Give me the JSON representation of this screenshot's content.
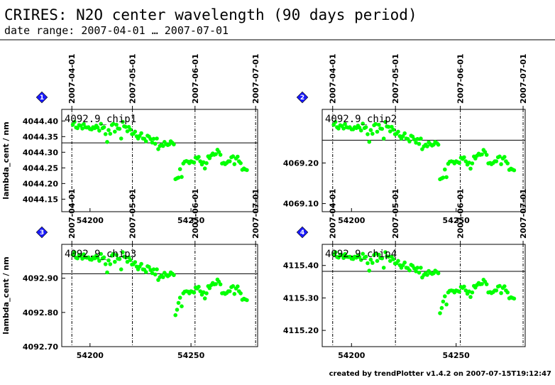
{
  "header": {
    "title": "CRIRES: N2O center wavelength (90 days period)",
    "subtitle": "date range: 2007-04-01 … 2007-07-01"
  },
  "footer": {
    "text": "created by trendPlotter v1.4.2 on 2007-07-15T19:12:47"
  },
  "colors": {
    "points": "#00ff00",
    "badge": "#1a1aff",
    "reference_line": "#000000"
  },
  "chart_data": [
    {
      "type": "scatter",
      "panel_label": "4092.9_chip1",
      "badge": "1",
      "ylabel": "lambda_cent / nm",
      "xlim": [
        54186,
        54283
      ],
      "ylim": [
        44.11,
        44.437
      ],
      "y_prefix": "40",
      "x_ticks": [
        54200,
        54250
      ],
      "y_ticks": [
        "4044.15",
        "4044.20",
        "4044.25",
        "4044.30",
        "4044.35",
        "4044.40"
      ],
      "date_ticks": [
        {
          "label": "2007-04-01",
          "x": 54191
        },
        {
          "label": "2007-05-01",
          "x": 54221
        },
        {
          "label": "2007-06-01",
          "x": 54252
        },
        {
          "label": "2007-07-01",
          "x": 54282
        }
      ],
      "reference_line": 44.33,
      "x": [
        54191.5,
        54192.3,
        54193.1,
        54193.8,
        54194.6,
        54195.4,
        54196.2,
        54196.9,
        54197.7,
        54198.5,
        54199.2,
        54200.0,
        54200.8,
        54201.5,
        54202.3,
        54203.1,
        54203.8,
        54204.6,
        54205.4,
        54206.2,
        54206.9,
        54207.7,
        54208.5,
        54209.2,
        54210.0,
        54210.8,
        54211.5,
        54212.3,
        54213.1,
        54213.8,
        54214.6,
        54215.4,
        54216.2,
        54216.9,
        54217.7,
        54218.5,
        54219.2,
        54220.0,
        54220.8,
        54221.5,
        54222.3,
        54223.1,
        54223.8,
        54224.6,
        54225.4,
        54226.2,
        54226.9,
        54227.7,
        54228.5,
        54229.2,
        54230.0,
        54230.8,
        54231.5,
        54232.3,
        54233.1,
        54233.8,
        54234.6,
        54235.4,
        54236.2,
        54236.9,
        54237.7,
        54238.5,
        54239.2,
        54240.0,
        54240.8,
        54241.5,
        54242.3,
        54243.1,
        54243.8,
        54244.6,
        54245.4,
        54246.2,
        54246.9,
        54247.7,
        54248.5,
        54249.2,
        54250.0,
        54250.8,
        54251.5,
        54252.3,
        54253.1,
        54253.8,
        54254.6,
        54255.4,
        54256.2,
        54256.9,
        54257.7,
        54258.5,
        54259.2,
        54260.0,
        54260.8,
        54261.5,
        54262.3,
        54263.1,
        54263.8,
        54264.6,
        54265.4,
        54266.2,
        54266.9,
        54267.7,
        54268.5,
        54269.2,
        54270.0,
        54270.8,
        54271.5,
        54272.3,
        54273.1,
        54273.8,
        54274.6,
        54275.4,
        54276.2,
        54276.9,
        54277.7
      ],
      "y": [
        44.388,
        44.397,
        44.379,
        44.377,
        44.387,
        44.385,
        44.376,
        44.39,
        44.38,
        44.379,
        44.38,
        44.374,
        44.373,
        44.38,
        44.377,
        44.385,
        44.379,
        44.369,
        44.391,
        44.377,
        44.38,
        44.358,
        44.333,
        44.371,
        44.359,
        44.387,
        44.391,
        44.366,
        44.388,
        44.376,
        44.375,
        44.344,
        44.397,
        44.383,
        44.381,
        44.367,
        44.381,
        44.372,
        44.358,
        44.359,
        44.366,
        44.351,
        44.344,
        44.352,
        44.361,
        44.344,
        44.343,
        44.335,
        44.353,
        44.35,
        44.342,
        44.331,
        44.343,
        44.327,
        44.344,
        44.31,
        44.32,
        44.324,
        44.32,
        44.333,
        44.326,
        44.323,
        44.325,
        44.335,
        44.33,
        44.325,
        44.214,
        44.217,
        44.219,
        44.246,
        44.221,
        44.264,
        44.27,
        44.272,
        44.27,
        44.265,
        44.271,
        44.269,
        44.267,
        44.283,
        44.28,
        44.285,
        44.271,
        44.261,
        44.268,
        44.248,
        44.265,
        44.287,
        44.281,
        44.29,
        44.296,
        44.292,
        44.294,
        44.308,
        44.301,
        44.292,
        44.264,
        44.266,
        44.262,
        44.266,
        44.271,
        44.271,
        44.284,
        44.287,
        44.262,
        44.28,
        44.286,
        44.271,
        44.265,
        44.244,
        44.248,
        44.245,
        44.243
      ]
    },
    {
      "type": "scatter",
      "panel_label": "4092.9_chip2",
      "badge": "2",
      "ylabel": "",
      "xlim": [
        54186,
        54283
      ],
      "ylim": [
        69.08,
        69.332
      ],
      "y_prefix": "40",
      "x_ticks": [
        54200,
        54250
      ],
      "y_ticks": [
        "4069.10",
        "4069.20"
      ],
      "date_ticks": [
        {
          "label": "2007-04-01",
          "x": 54191
        },
        {
          "label": "2007-05-01",
          "x": 54221
        },
        {
          "label": "2007-06-01",
          "x": 54252
        },
        {
          "label": "2007-07-01",
          "x": 54282
        }
      ],
      "reference_line": 69.256,
      "x": [
        54191.5,
        54192.3,
        54193.1,
        54193.8,
        54194.6,
        54195.4,
        54196.2,
        54196.9,
        54197.7,
        54198.5,
        54199.2,
        54200.0,
        54200.8,
        54201.5,
        54202.3,
        54203.1,
        54203.8,
        54204.6,
        54205.4,
        54206.2,
        54206.9,
        54207.7,
        54208.5,
        54209.2,
        54210.0,
        54210.8,
        54211.5,
        54212.3,
        54213.1,
        54213.8,
        54214.6,
        54215.4,
        54216.2,
        54216.9,
        54217.7,
        54218.5,
        54219.2,
        54220.0,
        54220.8,
        54221.5,
        54222.3,
        54223.1,
        54223.8,
        54224.6,
        54225.4,
        54226.2,
        54226.9,
        54227.7,
        54228.5,
        54229.2,
        54230.0,
        54230.8,
        54231.5,
        54232.3,
        54233.1,
        54233.8,
        54234.6,
        54235.4,
        54236.2,
        54236.9,
        54237.7,
        54238.5,
        54239.2,
        54240.0,
        54240.8,
        54241.5,
        54242.3,
        54243.1,
        54243.8,
        54244.6,
        54245.4,
        54246.2,
        54246.9,
        54247.7,
        54248.5,
        54249.2,
        54250.0,
        54250.8,
        54251.5,
        54252.3,
        54253.1,
        54253.8,
        54254.6,
        54255.4,
        54256.2,
        54256.9,
        54257.7,
        54258.5,
        54259.2,
        54260.0,
        54260.8,
        54261.5,
        54262.3,
        54263.1,
        54263.8,
        54264.6,
        54265.4,
        54266.2,
        54266.9,
        54267.7,
        54268.5,
        54269.2,
        54270.0,
        54270.8,
        54271.5,
        54272.3,
        54273.1,
        54273.8,
        54274.6,
        54275.4,
        54276.2,
        54276.9,
        54277.7
      ],
      "y": [
        69.294,
        69.301,
        69.288,
        69.285,
        69.293,
        69.291,
        69.285,
        69.296,
        69.288,
        69.287,
        69.288,
        69.283,
        69.283,
        69.288,
        69.286,
        69.292,
        69.287,
        69.28,
        69.297,
        69.286,
        69.288,
        69.271,
        69.252,
        69.281,
        69.272,
        69.293,
        69.296,
        69.277,
        69.294,
        69.285,
        69.284,
        69.26,
        69.301,
        69.29,
        69.289,
        69.278,
        69.289,
        69.282,
        69.271,
        69.272,
        69.277,
        69.266,
        69.26,
        69.266,
        69.273,
        69.26,
        69.259,
        69.253,
        69.267,
        69.265,
        69.258,
        69.25,
        69.259,
        69.247,
        69.26,
        69.234,
        69.241,
        69.245,
        69.241,
        69.251,
        69.246,
        69.243,
        69.245,
        69.252,
        69.249,
        69.245,
        69.16,
        69.162,
        69.164,
        69.184,
        69.165,
        69.198,
        69.203,
        69.204,
        69.203,
        69.199,
        69.204,
        69.202,
        69.2,
        69.213,
        69.21,
        69.214,
        69.204,
        69.196,
        69.201,
        69.186,
        69.199,
        69.216,
        69.211,
        69.218,
        69.223,
        69.22,
        69.221,
        69.232,
        69.227,
        69.22,
        69.199,
        69.2,
        69.197,
        69.2,
        69.204,
        69.204,
        69.214,
        69.216,
        69.197,
        69.211,
        69.215,
        69.204,
        69.199,
        69.183,
        69.186,
        69.184,
        69.182
      ]
    },
    {
      "type": "scatter",
      "panel_label": "4092.9_chip3",
      "badge": "3",
      "ylabel": "lambda_cent / nm",
      "xlim": [
        54186,
        54283
      ],
      "ylim": [
        92.7,
        92.999
      ],
      "y_prefix": "40",
      "x_ticks": [
        54200,
        54250
      ],
      "y_ticks": [
        "4092.70",
        "4092.80",
        "4092.90"
      ],
      "date_ticks": [
        {
          "label": "2007-04-01",
          "x": 54191
        },
        {
          "label": "2007-05-01",
          "x": 54221
        },
        {
          "label": "2007-06-01",
          "x": 54252
        },
        {
          "label": "2007-07-01",
          "x": 54282
        }
      ],
      "reference_line": 92.913,
      "x": [
        54191.5,
        54192.3,
        54193.1,
        54193.8,
        54194.6,
        54195.4,
        54196.2,
        54196.9,
        54197.7,
        54198.5,
        54199.2,
        54200.0,
        54200.8,
        54201.5,
        54202.3,
        54203.1,
        54203.8,
        54204.6,
        54205.4,
        54206.2,
        54206.9,
        54207.7,
        54208.5,
        54209.2,
        54210.0,
        54210.8,
        54211.5,
        54212.3,
        54213.1,
        54213.8,
        54214.6,
        54215.4,
        54216.2,
        54216.9,
        54217.7,
        54218.5,
        54219.2,
        54220.0,
        54220.8,
        54221.5,
        54222.3,
        54223.1,
        54223.8,
        54224.6,
        54225.4,
        54226.2,
        54226.9,
        54227.7,
        54228.5,
        54229.2,
        54230.0,
        54230.8,
        54231.5,
        54232.3,
        54233.1,
        54233.8,
        54234.6,
        54235.4,
        54236.2,
        54236.9,
        54237.7,
        54238.5,
        54239.2,
        54240.0,
        54240.8,
        54241.5,
        54242.3,
        54243.1,
        54243.8,
        54244.6,
        54245.4,
        54246.2,
        54246.9,
        54247.7,
        54248.5,
        54249.2,
        54250.0,
        54250.8,
        54251.5,
        54252.3,
        54253.1,
        54253.8,
        54254.6,
        54255.4,
        54256.2,
        54256.9,
        54257.7,
        54258.5,
        54259.2,
        54260.0,
        54260.8,
        54261.5,
        54262.3,
        54263.1,
        54263.8,
        54264.6,
        54265.4,
        54266.2,
        54266.9,
        54267.7,
        54268.5,
        54269.2,
        54270.0,
        54270.8,
        54271.5,
        54272.3,
        54273.1,
        54273.8,
        54274.6,
        54275.4,
        54276.2,
        54276.9,
        54277.7
      ],
      "y": [
        92.968,
        92.976,
        92.96,
        92.958,
        92.968,
        92.965,
        92.957,
        92.97,
        92.961,
        92.96,
        92.961,
        92.955,
        92.954,
        92.961,
        92.958,
        92.966,
        92.96,
        92.951,
        92.971,
        92.958,
        92.961,
        92.941,
        92.917,
        92.952,
        92.941,
        92.966,
        92.971,
        92.948,
        92.968,
        92.957,
        92.956,
        92.926,
        92.976,
        92.963,
        92.961,
        92.948,
        92.961,
        92.953,
        92.94,
        92.941,
        92.947,
        92.934,
        92.926,
        92.934,
        92.942,
        92.926,
        92.925,
        92.918,
        92.935,
        92.933,
        92.924,
        92.915,
        92.926,
        92.911,
        92.926,
        92.895,
        92.903,
        92.908,
        92.903,
        92.916,
        92.91,
        92.906,
        92.909,
        92.917,
        92.913,
        92.909,
        92.792,
        92.808,
        92.828,
        92.843,
        92.818,
        92.856,
        92.861,
        92.862,
        92.861,
        92.856,
        92.862,
        92.86,
        92.858,
        92.873,
        92.87,
        92.875,
        92.862,
        92.852,
        92.859,
        92.841,
        92.856,
        92.877,
        92.871,
        92.88,
        92.886,
        92.882,
        92.883,
        92.896,
        92.89,
        92.882,
        92.856,
        92.857,
        92.854,
        92.857,
        92.862,
        92.862,
        92.874,
        92.877,
        92.854,
        92.87,
        92.876,
        92.862,
        92.856,
        92.837,
        92.84,
        92.838,
        92.836
      ]
    },
    {
      "type": "scatter",
      "panel_label": "4092.9_chip4",
      "badge": "4",
      "ylabel": "",
      "xlim": [
        54186,
        54283
      ],
      "ylim": [
        15.15,
        15.465
      ],
      "y_prefix": "41",
      "x_ticks": [
        54200,
        54250
      ],
      "y_ticks": [
        "4115.20",
        "4115.30",
        "4115.40"
      ],
      "date_ticks": [
        {
          "label": "2007-04-01",
          "x": 54191
        },
        {
          "label": "2007-05-01",
          "x": 54221
        },
        {
          "label": "2007-06-01",
          "x": 54252
        },
        {
          "label": "2007-07-01",
          "x": 54282
        }
      ],
      "reference_line": 15.382,
      "x": [
        54191.5,
        54192.3,
        54193.1,
        54193.8,
        54194.6,
        54195.4,
        54196.2,
        54196.9,
        54197.7,
        54198.5,
        54199.2,
        54200.0,
        54200.8,
        54201.5,
        54202.3,
        54203.1,
        54203.8,
        54204.6,
        54205.4,
        54206.2,
        54206.9,
        54207.7,
        54208.5,
        54209.2,
        54210.0,
        54210.8,
        54211.5,
        54212.3,
        54213.1,
        54213.8,
        54214.6,
        54215.4,
        54216.2,
        54216.9,
        54217.7,
        54218.5,
        54219.2,
        54220.0,
        54220.8,
        54221.5,
        54222.3,
        54223.1,
        54223.8,
        54224.6,
        54225.4,
        54226.2,
        54226.9,
        54227.7,
        54228.5,
        54229.2,
        54230.0,
        54230.8,
        54231.5,
        54232.3,
        54233.1,
        54233.8,
        54234.6,
        54235.4,
        54236.2,
        54236.9,
        54237.7,
        54238.5,
        54239.2,
        54240.0,
        54240.8,
        54241.5,
        54242.3,
        54243.1,
        54243.8,
        54244.6,
        54245.4,
        54246.2,
        54246.9,
        54247.7,
        54248.5,
        54249.2,
        54250.0,
        54250.8,
        54251.5,
        54252.3,
        54253.1,
        54253.8,
        54254.6,
        54255.4,
        54256.2,
        54256.9,
        54257.7,
        54258.5,
        54259.2,
        54260.0,
        54260.8,
        54261.5,
        54262.3,
        54263.1,
        54263.8,
        54264.6,
        54265.4,
        54266.2,
        54266.9,
        54267.7,
        54268.5,
        54269.2,
        54270.0,
        54270.8,
        54271.5,
        54272.3,
        54273.1,
        54273.8,
        54274.6,
        54275.4,
        54276.2,
        54276.9,
        54277.7
      ],
      "y": [
        15.433,
        15.441,
        15.426,
        15.424,
        15.433,
        15.431,
        15.423,
        15.435,
        15.427,
        15.426,
        15.427,
        15.421,
        15.42,
        15.427,
        15.424,
        15.431,
        15.426,
        15.417,
        15.436,
        15.424,
        15.427,
        15.407,
        15.384,
        15.418,
        15.408,
        15.432,
        15.436,
        15.414,
        15.433,
        15.423,
        15.422,
        15.393,
        15.441,
        15.428,
        15.427,
        15.414,
        15.427,
        15.419,
        15.406,
        15.407,
        15.414,
        15.401,
        15.393,
        15.401,
        15.409,
        15.393,
        15.392,
        15.385,
        15.402,
        15.399,
        15.391,
        15.382,
        15.393,
        15.378,
        15.393,
        15.363,
        15.371,
        15.376,
        15.371,
        15.383,
        15.377,
        15.374,
        15.376,
        15.384,
        15.38,
        15.376,
        15.253,
        15.269,
        15.289,
        15.305,
        15.28,
        15.317,
        15.322,
        15.323,
        15.322,
        15.317,
        15.323,
        15.321,
        15.319,
        15.334,
        15.331,
        15.335,
        15.323,
        15.313,
        15.32,
        15.303,
        15.317,
        15.337,
        15.332,
        15.34,
        15.346,
        15.342,
        15.343,
        15.356,
        15.35,
        15.342,
        15.317,
        15.318,
        15.315,
        15.318,
        15.323,
        15.323,
        15.335,
        15.337,
        15.315,
        15.331,
        15.336,
        15.323,
        15.317,
        15.299,
        15.302,
        15.3,
        15.298
      ]
    }
  ]
}
